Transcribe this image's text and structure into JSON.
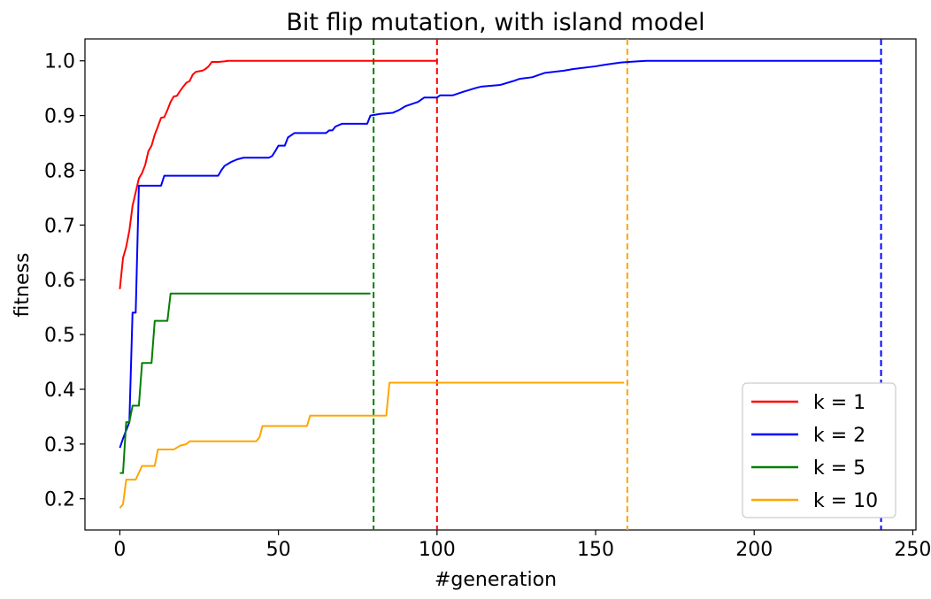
{
  "chart_data": {
    "type": "line",
    "title": "Bit flip mutation, with island model",
    "xlabel": "#generation",
    "ylabel": "fitness",
    "xlim": [
      -11,
      251
    ],
    "ylim": [
      0.143,
      1.04
    ],
    "x_ticks": [
      0,
      50,
      100,
      150,
      200,
      250
    ],
    "y_ticks": [
      0.2,
      0.3,
      0.4,
      0.5,
      0.6,
      0.7,
      0.8,
      0.9,
      1.0
    ],
    "x_tick_labels": [
      "0",
      "50",
      "100",
      "150",
      "200",
      "250"
    ],
    "y_tick_labels": [
      "0.2",
      "0.3",
      "0.4",
      "0.5",
      "0.6",
      "0.7",
      "0.8",
      "0.9",
      "1.0"
    ],
    "grid": false,
    "legend_position": "lower-right",
    "series": [
      {
        "name": "k = 1",
        "color": "#ff0000",
        "termination_generation": 100,
        "points": [
          [
            0,
            0.583
          ],
          [
            1,
            0.64
          ],
          [
            2,
            0.66
          ],
          [
            3,
            0.69
          ],
          [
            4,
            0.735
          ],
          [
            5,
            0.76
          ],
          [
            6,
            0.785
          ],
          [
            7,
            0.795
          ],
          [
            8,
            0.81
          ],
          [
            9,
            0.835
          ],
          [
            10,
            0.845
          ],
          [
            11,
            0.865
          ],
          [
            12,
            0.88
          ],
          [
            13,
            0.896
          ],
          [
            14,
            0.897
          ],
          [
            15,
            0.91
          ],
          [
            16,
            0.925
          ],
          [
            17,
            0.935
          ],
          [
            18,
            0.936
          ],
          [
            19,
            0.945
          ],
          [
            20,
            0.953
          ],
          [
            21,
            0.96
          ],
          [
            22,
            0.963
          ],
          [
            23,
            0.975
          ],
          [
            24,
            0.98
          ],
          [
            25,
            0.981
          ],
          [
            26,
            0.982
          ],
          [
            27,
            0.985
          ],
          [
            28,
            0.99
          ],
          [
            29,
            0.998
          ],
          [
            30,
            0.998
          ],
          [
            31,
            0.998
          ],
          [
            33,
            0.999
          ],
          [
            34,
            1.0
          ],
          [
            100,
            1.0
          ]
        ]
      },
      {
        "name": "k = 2",
        "color": "#0000ff",
        "termination_generation": 240,
        "points": [
          [
            0,
            0.293
          ],
          [
            1,
            0.31
          ],
          [
            2,
            0.325
          ],
          [
            3,
            0.34
          ],
          [
            4,
            0.54
          ],
          [
            5,
            0.54
          ],
          [
            6,
            0.772
          ],
          [
            7,
            0.772
          ],
          [
            12,
            0.772
          ],
          [
            13,
            0.772
          ],
          [
            14,
            0.79
          ],
          [
            31,
            0.79
          ],
          [
            32,
            0.8
          ],
          [
            33,
            0.808
          ],
          [
            35,
            0.815
          ],
          [
            37,
            0.82
          ],
          [
            39,
            0.823
          ],
          [
            47,
            0.823
          ],
          [
            48,
            0.826
          ],
          [
            49,
            0.835
          ],
          [
            50,
            0.845
          ],
          [
            52,
            0.845
          ],
          [
            53,
            0.86
          ],
          [
            55,
            0.868
          ],
          [
            65,
            0.868
          ],
          [
            66,
            0.873
          ],
          [
            67,
            0.873
          ],
          [
            68,
            0.88
          ],
          [
            70,
            0.885
          ],
          [
            78,
            0.885
          ],
          [
            79,
            0.9
          ],
          [
            82,
            0.903
          ],
          [
            86,
            0.905
          ],
          [
            88,
            0.91
          ],
          [
            90,
            0.917
          ],
          [
            94,
            0.925
          ],
          [
            96,
            0.933
          ],
          [
            100,
            0.933
          ],
          [
            101,
            0.937
          ],
          [
            105,
            0.937
          ],
          [
            108,
            0.943
          ],
          [
            112,
            0.95
          ],
          [
            114,
            0.953
          ],
          [
            120,
            0.956
          ],
          [
            124,
            0.963
          ],
          [
            126,
            0.967
          ],
          [
            130,
            0.97
          ],
          [
            134,
            0.978
          ],
          [
            140,
            0.982
          ],
          [
            143,
            0.985
          ],
          [
            150,
            0.99
          ],
          [
            153,
            0.993
          ],
          [
            158,
            0.997
          ],
          [
            163,
            0.999
          ],
          [
            166,
            1.0
          ],
          [
            240,
            1.0
          ]
        ]
      },
      {
        "name": "k = 5",
        "color": "#008000",
        "termination_generation": 80,
        "points": [
          [
            0,
            0.247
          ],
          [
            1,
            0.247
          ],
          [
            2,
            0.34
          ],
          [
            3,
            0.34
          ],
          [
            4,
            0.37
          ],
          [
            6,
            0.37
          ],
          [
            7,
            0.448
          ],
          [
            10,
            0.448
          ],
          [
            11,
            0.525
          ],
          [
            15,
            0.525
          ],
          [
            16,
            0.575
          ],
          [
            79,
            0.575
          ]
        ]
      },
      {
        "name": "k = 10",
        "color": "#ffa500",
        "termination_generation": 160,
        "points": [
          [
            0,
            0.183
          ],
          [
            1,
            0.19
          ],
          [
            2,
            0.235
          ],
          [
            5,
            0.235
          ],
          [
            7,
            0.26
          ],
          [
            11,
            0.26
          ],
          [
            12,
            0.29
          ],
          [
            17,
            0.29
          ],
          [
            19,
            0.297
          ],
          [
            21,
            0.3
          ],
          [
            22,
            0.305
          ],
          [
            43,
            0.305
          ],
          [
            44,
            0.312
          ],
          [
            45,
            0.333
          ],
          [
            59,
            0.333
          ],
          [
            60,
            0.352
          ],
          [
            84,
            0.352
          ],
          [
            85,
            0.412
          ],
          [
            159,
            0.412
          ]
        ]
      }
    ]
  }
}
